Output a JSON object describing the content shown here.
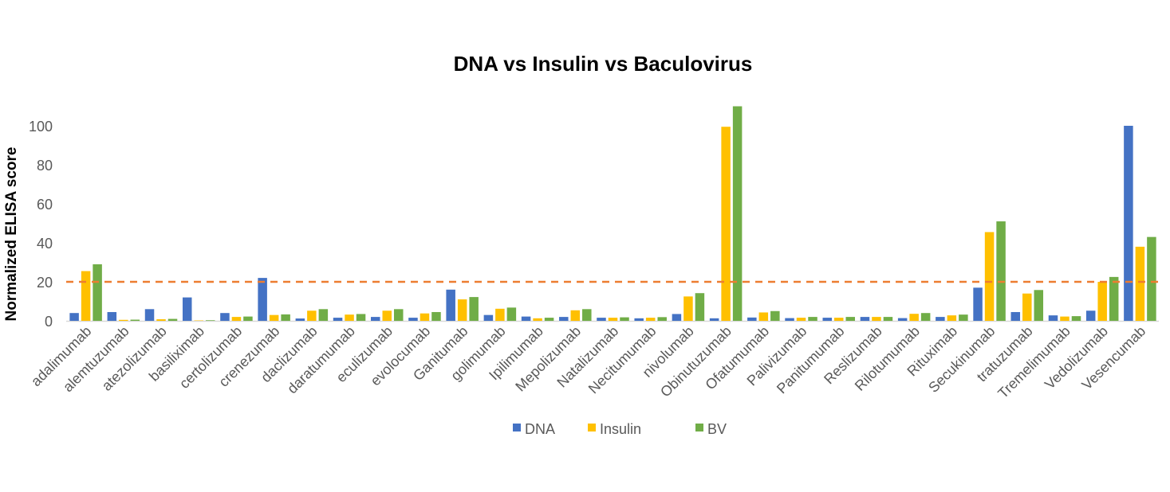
{
  "chart_data": {
    "type": "bar",
    "title": "DNA vs Insulin vs Baculovirus",
    "xlabel": "",
    "ylabel": "Normalized ELISA score",
    "ylim": [
      0,
      112
    ],
    "yticks": [
      0,
      20,
      40,
      60,
      80,
      100
    ],
    "grid": false,
    "legend_position": "bottom",
    "threshold": {
      "value": 20,
      "style": "dashed",
      "color": "#ED7D31"
    },
    "categories": [
      "adalimumab",
      "alemtuzumab",
      "atezolizumab",
      "basiliximab",
      "certolizumab",
      "crenezumab",
      "daclizumab",
      "daratumumab",
      "eculizumab",
      "evolocumab",
      "Ganitumab",
      "golimumab",
      "Ipilimumab",
      "Mepolizumab",
      "Natalizumab",
      "Necitumumab",
      "nivolumab",
      "Obinutuzumab",
      "Ofatumumab",
      "Palivizumab",
      "Panitumumab",
      "Reslizumab",
      "Rilotumumab",
      "Rituximab",
      "Secukinumab",
      "tratuzumab",
      "Tremelimumab",
      "Vedolizumab",
      "Vesencumab"
    ],
    "series": [
      {
        "name": "DNA",
        "color": "#4472C4",
        "values": [
          4,
          4.5,
          6,
          12,
          4,
          22,
          1.2,
          1.6,
          2,
          1.6,
          16,
          3,
          2.2,
          2,
          1.6,
          1.3,
          3.5,
          1.3,
          1.7,
          1.4,
          1.6,
          2,
          1.4,
          2,
          17,
          4.5,
          2.8,
          5.2,
          100
        ]
      },
      {
        "name": "Insulin",
        "color": "#FFC000",
        "values": [
          25.5,
          0.5,
          0.8,
          0.2,
          2,
          3,
          5.2,
          3.2,
          5.2,
          3.8,
          11,
          6.2,
          1.3,
          5.4,
          1.6,
          1.6,
          12.5,
          99.5,
          4.3,
          1.6,
          1.6,
          2,
          3.6,
          2.8,
          45.5,
          14,
          2.2,
          20,
          38
        ]
      },
      {
        "name": "BV",
        "color": "#70AD47",
        "values": [
          29,
          0.6,
          1,
          0.3,
          2.2,
          3.3,
          6,
          3.5,
          6,
          4.5,
          12.2,
          6.8,
          1.6,
          6,
          1.8,
          1.9,
          14.2,
          110,
          5,
          2,
          2,
          2,
          4,
          3.2,
          51,
          15.8,
          2.4,
          22.5,
          43
        ]
      }
    ]
  }
}
